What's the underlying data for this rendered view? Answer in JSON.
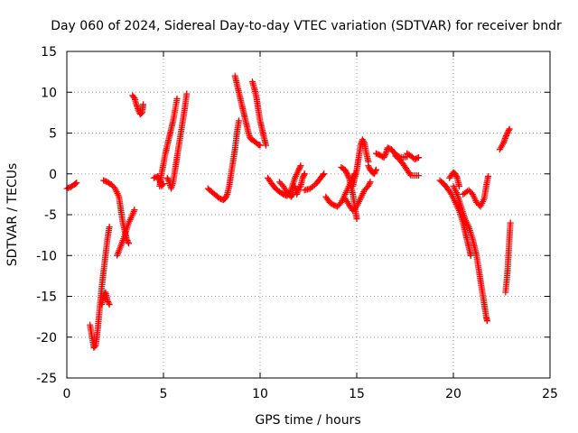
{
  "chart_data": {
    "type": "scatter",
    "title": "Day 060 of 2024, Sidereal Day-to-day VTEC variation (SDTVAR) for receiver bndr",
    "xlabel": "GPS time / hours",
    "ylabel": "SDTVAR / TECUs",
    "xlim": [
      0,
      25
    ],
    "ylim": [
      -25,
      15
    ],
    "xticks": [
      0,
      5,
      10,
      15,
      20,
      25
    ],
    "yticks": [
      -25,
      -20,
      -15,
      -10,
      -5,
      0,
      5,
      10,
      15
    ],
    "grid": true,
    "marker": "+",
    "color": "#ff0000",
    "series": [
      {
        "name": "SDTVAR",
        "segments": [
          [
            [
              0.0,
              -1.8
            ],
            [
              0.2,
              -1.6
            ],
            [
              0.4,
              -1.3
            ],
            [
              0.5,
              -1.1
            ]
          ],
          [
            [
              1.2,
              -18.5
            ],
            [
              1.3,
              -20.0
            ],
            [
              1.4,
              -21.3
            ],
            [
              1.5,
              -21.0
            ],
            [
              1.6,
              -19.0
            ],
            [
              1.7,
              -16.5
            ],
            [
              1.8,
              -14.0
            ],
            [
              1.9,
              -12.0
            ],
            [
              2.0,
              -10.0
            ],
            [
              2.1,
              -8.0
            ],
            [
              2.2,
              -6.5
            ]
          ],
          [
            [
              1.8,
              -16.0
            ],
            [
              1.9,
              -15.0
            ],
            [
              2.0,
              -14.5
            ],
            [
              2.1,
              -15.5
            ],
            [
              2.2,
              -16.0
            ]
          ],
          [
            [
              1.9,
              -0.8
            ],
            [
              2.1,
              -1.0
            ],
            [
              2.3,
              -1.3
            ],
            [
              2.5,
              -1.8
            ],
            [
              2.7,
              -2.8
            ],
            [
              2.8,
              -4.5
            ],
            [
              2.9,
              -6.0
            ],
            [
              3.0,
              -7.0
            ],
            [
              3.1,
              -8.0
            ],
            [
              3.2,
              -8.5
            ]
          ],
          [
            [
              2.6,
              -10.0
            ],
            [
              2.8,
              -8.8
            ],
            [
              3.0,
              -7.5
            ],
            [
              3.2,
              -6.0
            ],
            [
              3.4,
              -5.0
            ],
            [
              3.5,
              -4.4
            ]
          ],
          [
            [
              3.4,
              9.6
            ],
            [
              3.5,
              9.3
            ],
            [
              3.6,
              8.5
            ],
            [
              3.7,
              7.8
            ],
            [
              3.8,
              7.3
            ],
            [
              3.9,
              7.5
            ],
            [
              3.95,
              8.5
            ]
          ],
          [
            [
              4.5,
              -0.5
            ],
            [
              4.7,
              -0.3
            ],
            [
              4.8,
              -0.8
            ],
            [
              4.9,
              -1.5
            ],
            [
              5.0,
              -1.2
            ]
          ],
          [
            [
              4.8,
              -1.5
            ],
            [
              4.9,
              0.0
            ],
            [
              5.0,
              1.2
            ],
            [
              5.1,
              2.5
            ],
            [
              5.2,
              3.5
            ],
            [
              5.3,
              4.5
            ],
            [
              5.4,
              5.5
            ],
            [
              5.5,
              6.5
            ],
            [
              5.6,
              7.8
            ],
            [
              5.7,
              9.2
            ]
          ],
          [
            [
              5.2,
              -0.5
            ],
            [
              5.3,
              -1.0
            ],
            [
              5.4,
              -1.8
            ],
            [
              5.5,
              -1.0
            ],
            [
              5.6,
              0.5
            ],
            [
              5.7,
              2.0
            ],
            [
              5.8,
              3.5
            ],
            [
              5.9,
              5.0
            ],
            [
              6.0,
              6.5
            ],
            [
              6.1,
              8.0
            ],
            [
              6.2,
              9.8
            ]
          ],
          [
            [
              7.3,
              -1.8
            ],
            [
              7.5,
              -2.2
            ],
            [
              7.7,
              -2.6
            ],
            [
              7.9,
              -3.0
            ],
            [
              8.1,
              -3.2
            ],
            [
              8.2,
              -3.0
            ],
            [
              8.3,
              -2.5
            ],
            [
              8.4,
              -1.5
            ],
            [
              8.5,
              0.0
            ],
            [
              8.6,
              1.5
            ],
            [
              8.7,
              3.0
            ],
            [
              8.8,
              5.0
            ],
            [
              8.9,
              6.5
            ]
          ],
          [
            [
              8.7,
              12.0
            ],
            [
              8.8,
              11.0
            ],
            [
              8.9,
              10.0
            ],
            [
              9.0,
              9.0
            ],
            [
              9.1,
              8.0
            ],
            [
              9.2,
              7.0
            ],
            [
              9.3,
              6.0
            ],
            [
              9.4,
              5.0
            ],
            [
              9.5,
              4.3
            ],
            [
              9.7,
              4.0
            ],
            [
              9.9,
              3.6
            ],
            [
              10.0,
              3.5
            ]
          ],
          [
            [
              9.6,
              11.3
            ],
            [
              9.7,
              10.5
            ],
            [
              9.8,
              9.5
            ],
            [
              9.9,
              8.0
            ],
            [
              10.0,
              6.5
            ],
            [
              10.1,
              5.5
            ],
            [
              10.2,
              4.5
            ],
            [
              10.3,
              3.5
            ]
          ],
          [
            [
              10.4,
              -0.5
            ],
            [
              10.6,
              -1.2
            ],
            [
              10.8,
              -1.8
            ],
            [
              11.0,
              -2.2
            ],
            [
              11.2,
              -2.5
            ],
            [
              11.4,
              -2.7
            ],
            [
              11.6,
              -2.0
            ],
            [
              11.8,
              -0.5
            ],
            [
              12.0,
              0.5
            ],
            [
              12.1,
              1.0
            ]
          ],
          [
            [
              11.0,
              -1.0
            ],
            [
              11.2,
              -1.5
            ],
            [
              11.4,
              -2.3
            ],
            [
              11.6,
              -2.8
            ],
            [
              11.7,
              -2.5
            ]
          ],
          [
            [
              11.8,
              -1.5
            ],
            [
              11.9,
              -2.5
            ],
            [
              12.0,
              -1.8
            ],
            [
              12.1,
              -1.5
            ],
            [
              12.2,
              -0.5
            ],
            [
              12.3,
              0.0
            ]
          ],
          [
            [
              12.3,
              -2.0
            ],
            [
              12.6,
              -1.8
            ],
            [
              12.9,
              -1.2
            ],
            [
              13.1,
              -0.6
            ],
            [
              13.3,
              0.0
            ]
          ],
          [
            [
              13.4,
              -2.8
            ],
            [
              13.6,
              -3.5
            ],
            [
              13.8,
              -3.8
            ],
            [
              14.0,
              -4.0
            ],
            [
              14.2,
              -3.5
            ],
            [
              14.4,
              -2.5
            ],
            [
              14.6,
              -1.5
            ],
            [
              14.8,
              -0.5
            ],
            [
              14.9,
              0.0
            ]
          ],
          [
            [
              14.2,
              0.8
            ],
            [
              14.4,
              0.5
            ],
            [
              14.5,
              0.0
            ],
            [
              14.6,
              -0.5
            ],
            [
              14.7,
              -1.5
            ],
            [
              14.8,
              -2.5
            ],
            [
              14.9,
              -4.0
            ],
            [
              15.0,
              -5.5
            ]
          ],
          [
            [
              14.4,
              -3.0
            ],
            [
              14.6,
              -3.8
            ],
            [
              14.8,
              -4.5
            ],
            [
              15.0,
              -4.0
            ],
            [
              15.2,
              -3.0
            ],
            [
              15.4,
              -2.0
            ],
            [
              15.6,
              -1.5
            ],
            [
              15.7,
              -1.0
            ]
          ],
          [
            [
              14.8,
              -1.5
            ],
            [
              14.9,
              -0.5
            ],
            [
              15.0,
              0.5
            ],
            [
              15.1,
              2.0
            ],
            [
              15.2,
              3.5
            ],
            [
              15.3,
              4.2
            ],
            [
              15.4,
              3.8
            ],
            [
              15.5,
              2.5
            ],
            [
              15.6,
              1.5
            ]
          ],
          [
            [
              15.6,
              1.0
            ],
            [
              15.7,
              0.5
            ],
            [
              15.8,
              0.2
            ],
            [
              15.9,
              0.0
            ],
            [
              16.0,
              0.5
            ]
          ],
          [
            [
              16.0,
              2.5
            ],
            [
              16.2,
              2.3
            ],
            [
              16.4,
              2.0
            ],
            [
              16.5,
              2.5
            ],
            [
              16.6,
              3.2
            ],
            [
              16.8,
              3.0
            ],
            [
              17.0,
              2.4
            ],
            [
              17.2,
              2.1
            ],
            [
              17.4,
              2.0
            ],
            [
              17.6,
              2.1
            ]
          ],
          [
            [
              17.0,
              2.2
            ],
            [
              17.2,
              1.8
            ],
            [
              17.4,
              1.2
            ],
            [
              17.6,
              0.5
            ],
            [
              17.8,
              -0.2
            ],
            [
              18.0,
              -0.2
            ],
            [
              18.2,
              -0.2
            ]
          ],
          [
            [
              17.6,
              2.5
            ],
            [
              17.8,
              2.2
            ],
            [
              18.0,
              1.8
            ],
            [
              18.2,
              2.0
            ]
          ],
          [
            [
              19.3,
              -0.8
            ],
            [
              19.5,
              -1.2
            ],
            [
              19.7,
              -1.8
            ],
            [
              19.9,
              -2.5
            ],
            [
              20.1,
              -3.5
            ],
            [
              20.3,
              -4.5
            ],
            [
              20.5,
              -6.0
            ],
            [
              20.6,
              -7.0
            ],
            [
              20.7,
              -8.0
            ],
            [
              20.8,
              -9.0
            ],
            [
              20.9,
              -10.0
            ]
          ],
          [
            [
              19.8,
              -0.5
            ],
            [
              20.0,
              0.2
            ],
            [
              20.1,
              0.0
            ],
            [
              20.2,
              -0.5
            ],
            [
              20.3,
              -1.5
            ]
          ],
          [
            [
              20.0,
              -1.5
            ],
            [
              20.2,
              -2.5
            ],
            [
              20.4,
              -4.0
            ],
            [
              20.6,
              -5.5
            ],
            [
              20.8,
              -6.5
            ],
            [
              21.0,
              -8.0
            ],
            [
              21.1,
              -9.0
            ],
            [
              21.2,
              -10.0
            ],
            [
              21.3,
              -11.5
            ],
            [
              21.4,
              -13.0
            ],
            [
              21.5,
              -14.5
            ],
            [
              21.6,
              -16.0
            ],
            [
              21.7,
              -17.5
            ],
            [
              21.75,
              -18.0
            ]
          ],
          [
            [
              20.5,
              -2.5
            ],
            [
              20.8,
              -2.0
            ],
            [
              21.0,
              -2.5
            ],
            [
              21.2,
              -3.5
            ],
            [
              21.4,
              -4.0
            ],
            [
              21.6,
              -3.0
            ],
            [
              21.7,
              -1.5
            ],
            [
              21.8,
              -0.3
            ]
          ],
          [
            [
              22.4,
              3.0
            ],
            [
              22.6,
              3.8
            ],
            [
              22.7,
              4.5
            ],
            [
              22.8,
              5.0
            ],
            [
              22.9,
              5.5
            ]
          ],
          [
            [
              22.7,
              -14.5
            ],
            [
              22.8,
              -12.0
            ],
            [
              22.85,
              -10.0
            ],
            [
              22.9,
              -8.0
            ],
            [
              22.95,
              -6.0
            ]
          ]
        ]
      }
    ]
  }
}
